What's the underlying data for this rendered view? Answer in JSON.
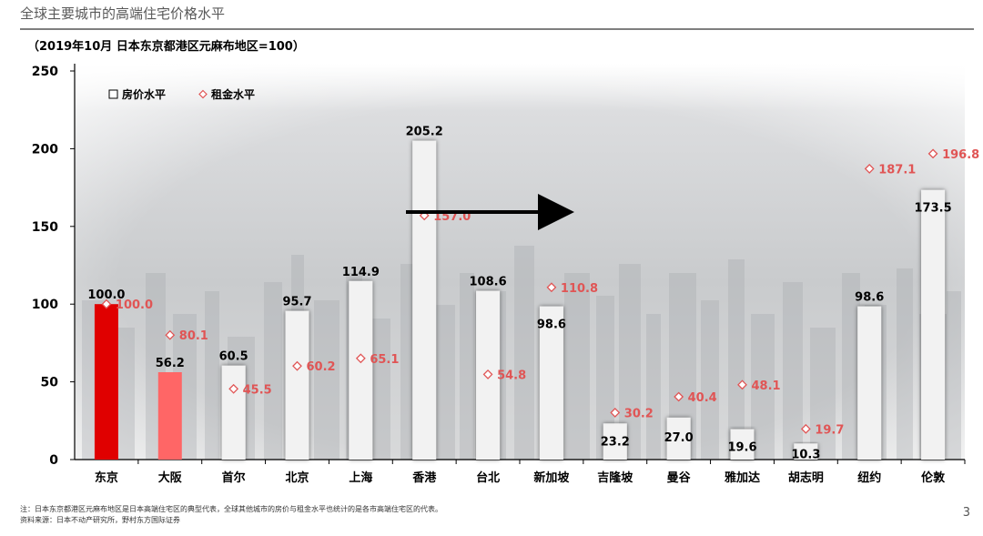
{
  "header": {
    "page_title": "全球主要城市的高端住宅价格水平",
    "subtitle": "（2019年10月 日本东京都港区元麻布地区=100）"
  },
  "chart_data": {
    "type": "bar",
    "title": "",
    "xlabel": "",
    "ylabel": "",
    "ylim": [
      0,
      250
    ],
    "yticks": [
      0,
      50,
      100,
      150,
      200,
      250
    ],
    "grid": false,
    "legend_position": "top-left",
    "categories": [
      "东京",
      "大阪",
      "首尔",
      "北京",
      "上海",
      "香港",
      "台北",
      "新加坡",
      "吉隆坡",
      "曼谷",
      "雅加达",
      "胡志明",
      "纽约",
      "伦敦"
    ],
    "series": [
      {
        "name": "房价水平",
        "kind": "bar",
        "values": [
          100.0,
          56.2,
          60.5,
          95.7,
          114.9,
          205.2,
          108.6,
          98.6,
          23.2,
          27.0,
          19.6,
          10.3,
          98.6,
          173.5
        ],
        "labels": [
          "100.0",
          "56.2",
          "60.5",
          "95.7",
          "114.9",
          "205.2",
          "108.6",
          "98.6",
          "23.2",
          "27.0",
          "19.6",
          "10.3",
          "98.6",
          "173.5"
        ]
      },
      {
        "name": "租金水平",
        "kind": "diamond",
        "values": [
          100.0,
          80.1,
          45.5,
          60.2,
          65.1,
          157.0,
          54.8,
          110.8,
          30.2,
          40.4,
          48.1,
          19.7,
          187.1,
          196.8
        ],
        "labels": [
          "100.0",
          "80.1",
          "45.5",
          "60.2",
          "65.1",
          "157.0",
          "54.8",
          "110.8",
          "30.2",
          "40.4",
          "48.1",
          "19.7",
          "187.1",
          "196.8"
        ]
      }
    ],
    "colors": {
      "bar_default": "#f2f2f2",
      "bar_tokyo": "#e00000",
      "bar_osaka": "#ff6666",
      "rent_marker": "#e05555",
      "arrow": "#000000"
    }
  },
  "footer": {
    "note": "注：日本东京都港区元麻布地区是日本高端住宅区的典型代表，全球其他城市的房价与租金水平也统计的是各市高端住宅区的代表。",
    "source": "资料来源：日本不动产研究所，野村东方国际证券",
    "page_number": "3"
  }
}
